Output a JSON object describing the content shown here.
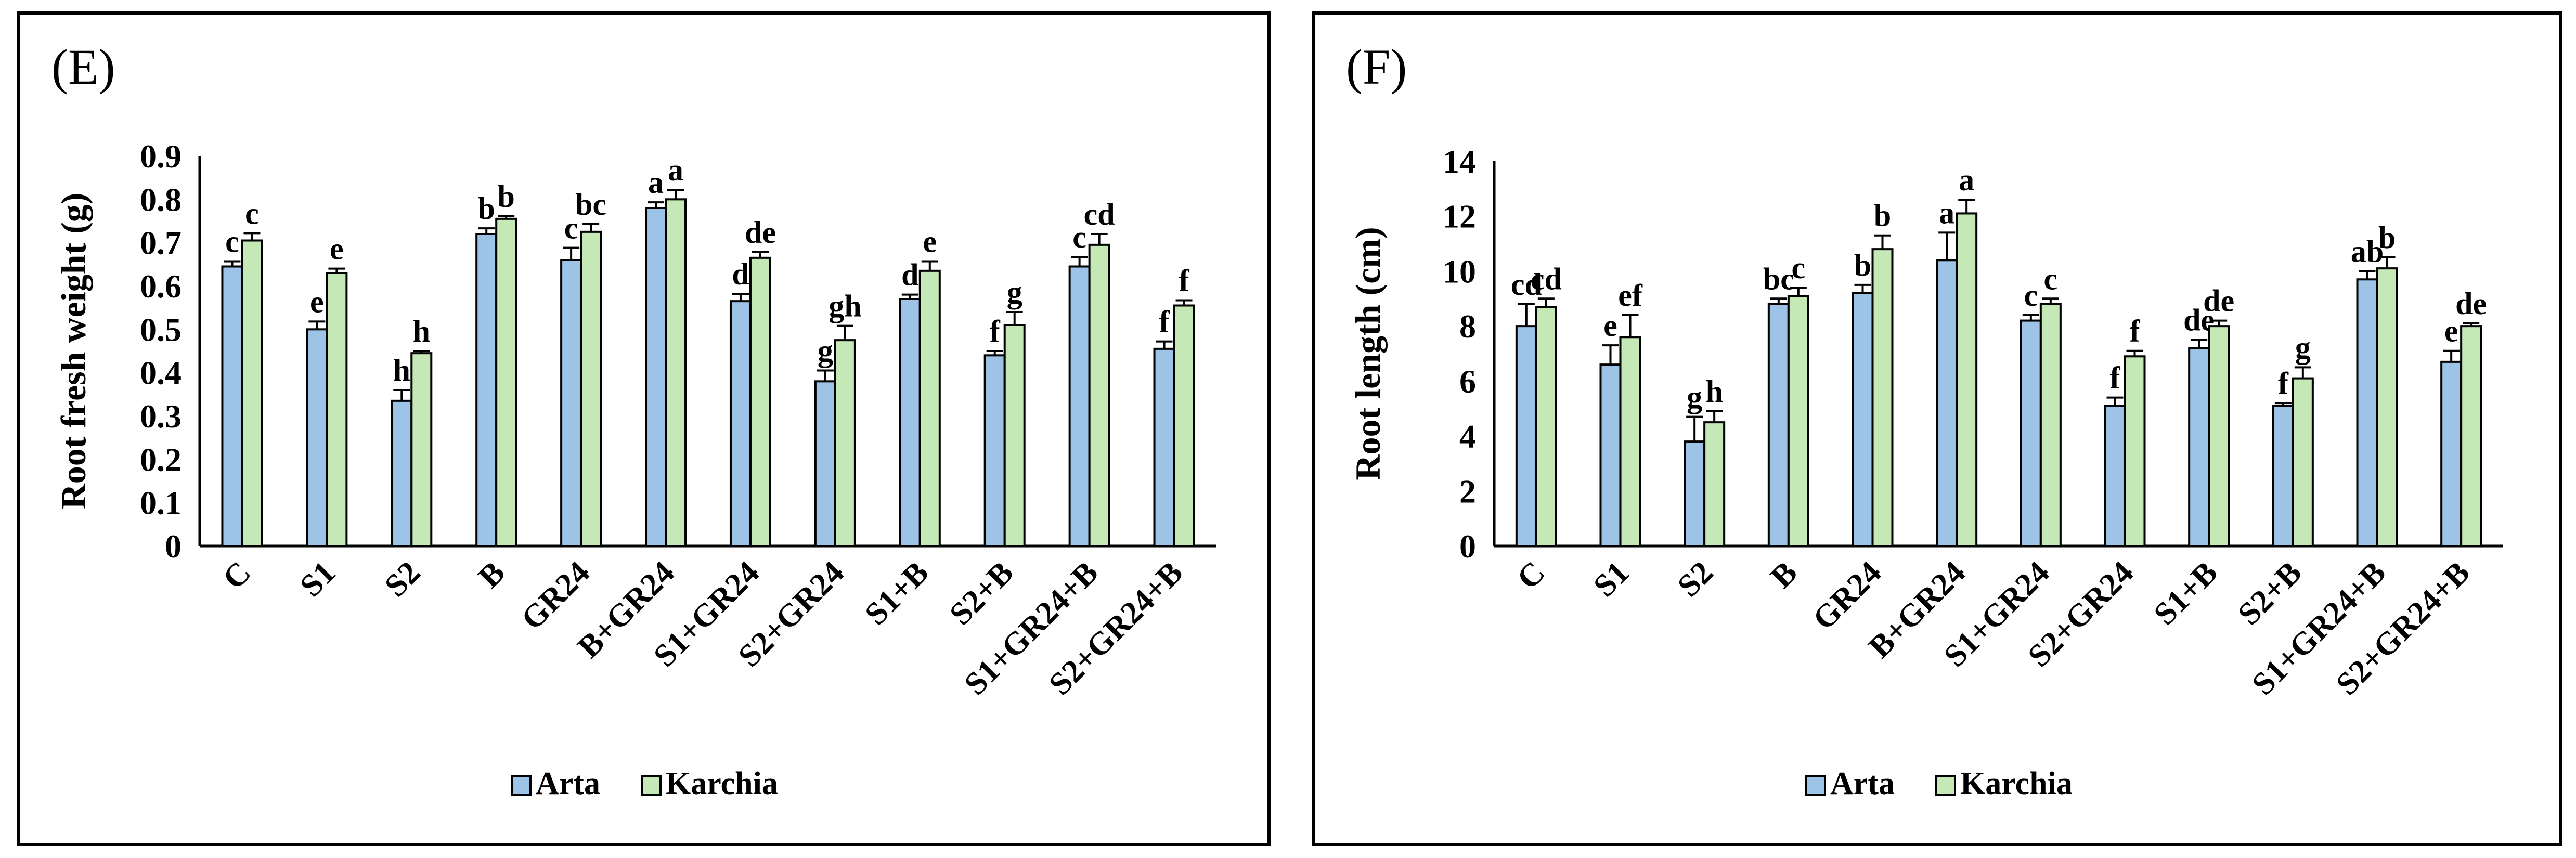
{
  "colors": {
    "arta": "#9DC3E6",
    "karchia": "#C5E8B7",
    "edge": "#000000"
  },
  "chart_data": [
    {
      "type": "bar",
      "panel_label": "(E)",
      "ylabel": "Root fresh weight (g)",
      "xlabel": "",
      "ylim": [
        0,
        0.9
      ],
      "yticks": [
        0,
        0.1,
        0.2,
        0.3,
        0.4,
        0.5,
        0.6,
        0.7,
        0.8,
        0.9
      ],
      "ytick_labels": [
        "0",
        "0.1",
        "0.2",
        "0.3",
        "0.4",
        "0.5",
        "0.6",
        "0.7",
        "0.8",
        "0.9"
      ],
      "categories": [
        "C",
        "S1",
        "S2",
        "B",
        "GR24",
        "B+GR24",
        "S1+GR24",
        "S2+GR24",
        "S1+B",
        "S2+B",
        "S1+GR24+B",
        "S2+GR24+B"
      ],
      "legend": [
        "Arta",
        "Karchia"
      ],
      "series": [
        {
          "name": "Arta",
          "values": [
            0.645,
            0.5,
            0.335,
            0.72,
            0.66,
            0.78,
            0.565,
            0.38,
            0.57,
            0.44,
            0.645,
            0.455
          ],
          "errors": [
            0.012,
            0.018,
            0.025,
            0.013,
            0.028,
            0.013,
            0.017,
            0.025,
            0.01,
            0.01,
            0.022,
            0.017
          ],
          "letters": [
            "c",
            "e",
            "h",
            "b",
            "c",
            "a",
            "d",
            "g",
            "d",
            "f",
            "c",
            "f"
          ]
        },
        {
          "name": "Karchia",
          "values": [
            0.705,
            0.63,
            0.445,
            0.755,
            0.725,
            0.8,
            0.665,
            0.475,
            0.635,
            0.51,
            0.695,
            0.555
          ],
          "errors": [
            0.017,
            0.01,
            0.005,
            0.006,
            0.018,
            0.022,
            0.013,
            0.033,
            0.022,
            0.03,
            0.025,
            0.012
          ],
          "letters": [
            "c",
            "e",
            "h",
            "b",
            "bc",
            "a",
            "de",
            "gh",
            "e",
            "g",
            "cd",
            "f"
          ]
        }
      ]
    },
    {
      "type": "bar",
      "panel_label": "(F)",
      "ylabel": "Root length (cm)",
      "xlabel": "",
      "ylim": [
        0,
        14
      ],
      "yticks": [
        0,
        2,
        4,
        6,
        8,
        10,
        12,
        14
      ],
      "ytick_labels": [
        "0",
        "2",
        "4",
        "6",
        "8",
        "10",
        "12",
        "14"
      ],
      "categories": [
        "C",
        "S1",
        "S2",
        "B",
        "GR24",
        "B+GR24",
        "S1+GR24",
        "S2+GR24",
        "S1+B",
        "S2+B",
        "S1+GR24+B",
        "S2+GR24+B"
      ],
      "legend": [
        "Arta",
        "Karchia"
      ],
      "series": [
        {
          "name": "Arta",
          "values": [
            8.0,
            6.6,
            3.8,
            8.8,
            9.2,
            10.4,
            8.2,
            5.1,
            7.2,
            5.1,
            9.7,
            6.7
          ],
          "errors": [
            0.8,
            0.7,
            0.9,
            0.2,
            0.3,
            1.0,
            0.2,
            0.3,
            0.3,
            0.1,
            0.3,
            0.4
          ],
          "letters": [
            "cd",
            "e",
            "g",
            "bc",
            "b",
            "a",
            "c",
            "f",
            "de",
            "f",
            "ab",
            "e"
          ]
        },
        {
          "name": "Karchia",
          "values": [
            8.7,
            7.6,
            4.5,
            9.1,
            10.8,
            12.1,
            8.8,
            6.9,
            8.0,
            6.1,
            10.1,
            8.0
          ],
          "errors": [
            0.3,
            0.8,
            0.4,
            0.3,
            0.5,
            0.5,
            0.2,
            0.2,
            0.2,
            0.4,
            0.4,
            0.1
          ],
          "letters": [
            "cd",
            "ef",
            "h",
            "c",
            "b",
            "a",
            "c",
            "f",
            "de",
            "g",
            "b",
            "de"
          ]
        }
      ]
    }
  ]
}
